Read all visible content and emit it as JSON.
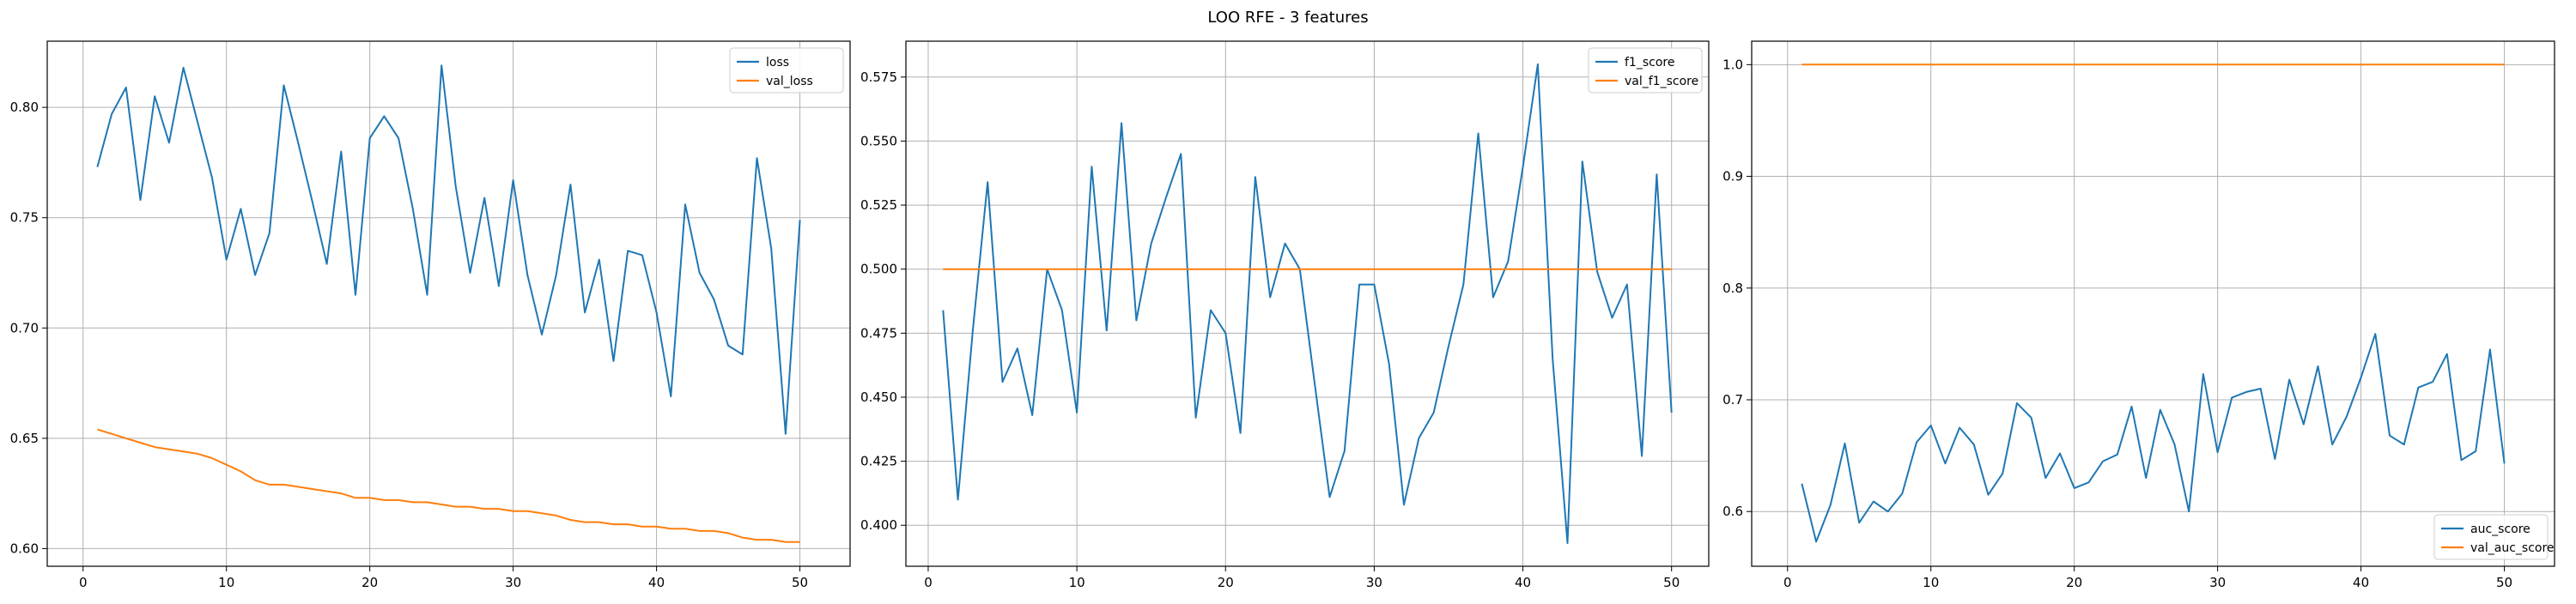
{
  "figure": {
    "suptitle": "LOO RFE - 3 features"
  },
  "colors": {
    "train": "#1f77b4",
    "val": "#ff7f0e",
    "grid": "#b0b0b0",
    "axes": "#000000"
  },
  "chart_data": [
    {
      "type": "line",
      "x": [
        1,
        2,
        3,
        4,
        5,
        6,
        7,
        8,
        9,
        10,
        11,
        12,
        13,
        14,
        15,
        16,
        17,
        18,
        19,
        20,
        21,
        22,
        23,
        24,
        25,
        26,
        27,
        28,
        29,
        30,
        31,
        32,
        33,
        34,
        35,
        36,
        37,
        38,
        39,
        40,
        41,
        42,
        43,
        44,
        45,
        46,
        47,
        48,
        49,
        50
      ],
      "series": [
        {
          "name": "loss",
          "values": [
            0.773,
            0.797,
            0.809,
            0.758,
            0.805,
            0.784,
            0.818,
            0.793,
            0.768,
            0.731,
            0.754,
            0.724,
            0.743,
            0.81,
            0.784,
            0.757,
            0.729,
            0.78,
            0.715,
            0.786,
            0.796,
            0.786,
            0.754,
            0.715,
            0.819,
            0.764,
            0.725,
            0.759,
            0.719,
            0.767,
            0.724,
            0.697,
            0.724,
            0.765,
            0.707,
            0.731,
            0.685,
            0.735,
            0.733,
            0.707,
            0.669,
            0.756,
            0.725,
            0.713,
            0.692,
            0.688,
            0.777,
            0.736,
            0.652,
            0.749
          ]
        },
        {
          "name": "val_loss",
          "values": [
            0.654,
            0.652,
            0.65,
            0.648,
            0.646,
            0.645,
            0.644,
            0.643,
            0.641,
            0.638,
            0.635,
            0.631,
            0.629,
            0.629,
            0.628,
            0.627,
            0.626,
            0.625,
            0.623,
            0.623,
            0.622,
            0.622,
            0.621,
            0.621,
            0.62,
            0.619,
            0.619,
            0.618,
            0.618,
            0.617,
            0.617,
            0.616,
            0.615,
            0.613,
            0.612,
            0.612,
            0.611,
            0.611,
            0.61,
            0.61,
            0.609,
            0.609,
            0.608,
            0.608,
            0.607,
            0.605,
            0.604,
            0.604,
            0.603,
            0.603
          ]
        }
      ],
      "xlim": [
        -2.5,
        53.5
      ],
      "ylim": [
        0.592,
        0.83
      ],
      "xticks": [
        0,
        10,
        20,
        30,
        40,
        50
      ],
      "yticks": [
        0.6,
        0.65,
        0.7,
        0.75,
        0.8
      ],
      "ytick_labels": [
        "0.60",
        "0.65",
        "0.70",
        "0.75",
        "0.80"
      ],
      "grid": true,
      "legend": "top-right"
    },
    {
      "type": "line",
      "x": [
        1,
        2,
        3,
        4,
        5,
        6,
        7,
        8,
        9,
        10,
        11,
        12,
        13,
        14,
        15,
        16,
        17,
        18,
        19,
        20,
        21,
        22,
        23,
        24,
        25,
        26,
        27,
        28,
        29,
        30,
        31,
        32,
        33,
        34,
        35,
        36,
        37,
        38,
        39,
        40,
        41,
        42,
        43,
        44,
        45,
        46,
        47,
        48,
        49,
        50
      ],
      "series": [
        {
          "name": "f1_score",
          "values": [
            0.484,
            0.41,
            0.476,
            0.534,
            0.456,
            0.469,
            0.443,
            0.5,
            0.484,
            0.444,
            0.54,
            0.476,
            0.557,
            0.48,
            0.51,
            0.528,
            0.545,
            0.442,
            0.484,
            0.475,
            0.436,
            0.536,
            0.489,
            0.51,
            0.5,
            0.455,
            0.411,
            0.429,
            0.494,
            0.494,
            0.463,
            0.408,
            0.434,
            0.444,
            0.47,
            0.494,
            0.553,
            0.489,
            0.503,
            0.54,
            0.58,
            0.465,
            0.393,
            0.542,
            0.499,
            0.481,
            0.494,
            0.427,
            0.537,
            0.444
          ]
        },
        {
          "name": "val_f1_score",
          "values": [
            0.5,
            0.5,
            0.5,
            0.5,
            0.5,
            0.5,
            0.5,
            0.5,
            0.5,
            0.5,
            0.5,
            0.5,
            0.5,
            0.5,
            0.5,
            0.5,
            0.5,
            0.5,
            0.5,
            0.5,
            0.5,
            0.5,
            0.5,
            0.5,
            0.5,
            0.5,
            0.5,
            0.5,
            0.5,
            0.5,
            0.5,
            0.5,
            0.5,
            0.5,
            0.5,
            0.5,
            0.5,
            0.5,
            0.5,
            0.5,
            0.5,
            0.5,
            0.5,
            0.5,
            0.5,
            0.5,
            0.5,
            0.5,
            0.5,
            0.5
          ]
        }
      ],
      "xlim": [
        -1.5,
        52.5
      ],
      "ylim": [
        0.384,
        0.589
      ],
      "xticks": [
        0,
        10,
        20,
        30,
        40,
        50
      ],
      "yticks": [
        0.4,
        0.425,
        0.45,
        0.475,
        0.5,
        0.525,
        0.55,
        0.575
      ],
      "ytick_labels": [
        "0.400",
        "0.425",
        "0.450",
        "0.475",
        "0.500",
        "0.525",
        "0.550",
        "0.575"
      ],
      "grid": true,
      "legend": "top-right"
    },
    {
      "type": "line",
      "x": [
        1,
        2,
        3,
        4,
        5,
        6,
        7,
        8,
        9,
        10,
        11,
        12,
        13,
        14,
        15,
        16,
        17,
        18,
        19,
        20,
        21,
        22,
        23,
        24,
        25,
        26,
        27,
        28,
        29,
        30,
        31,
        32,
        33,
        34,
        35,
        36,
        37,
        38,
        39,
        40,
        41,
        42,
        43,
        44,
        45,
        46,
        47,
        48,
        49,
        50
      ],
      "series": [
        {
          "name": "auc_score",
          "values": [
            0.625,
            0.573,
            0.606,
            0.661,
            0.59,
            0.609,
            0.6,
            0.616,
            0.662,
            0.677,
            0.643,
            0.675,
            0.66,
            0.615,
            0.634,
            0.697,
            0.684,
            0.63,
            0.652,
            0.621,
            0.626,
            0.645,
            0.651,
            0.694,
            0.63,
            0.691,
            0.66,
            0.6,
            0.723,
            0.653,
            0.702,
            0.707,
            0.71,
            0.647,
            0.718,
            0.678,
            0.73,
            0.66,
            0.685,
            0.72,
            0.759,
            0.668,
            0.66,
            0.711,
            0.716,
            0.741,
            0.646,
            0.654,
            0.745,
            0.643
          ]
        },
        {
          "name": "val_auc_score",
          "values": [
            1.0,
            1.0,
            1.0,
            1.0,
            1.0,
            1.0,
            1.0,
            1.0,
            1.0,
            1.0,
            1.0,
            1.0,
            1.0,
            1.0,
            1.0,
            1.0,
            1.0,
            1.0,
            1.0,
            1.0,
            1.0,
            1.0,
            1.0,
            1.0,
            1.0,
            1.0,
            1.0,
            1.0,
            1.0,
            1.0,
            1.0,
            1.0,
            1.0,
            1.0,
            1.0,
            1.0,
            1.0,
            1.0,
            1.0,
            1.0,
            1.0,
            1.0,
            1.0,
            1.0,
            1.0,
            1.0,
            1.0,
            1.0,
            1.0,
            1.0
          ]
        }
      ],
      "xlim": [
        -2.5,
        53.5
      ],
      "ylim": [
        0.551,
        1.021
      ],
      "xticks": [
        0,
        10,
        20,
        30,
        40,
        50
      ],
      "yticks": [
        0.6,
        0.7,
        0.8,
        0.9,
        1.0
      ],
      "ytick_labels": [
        "0.6",
        "0.7",
        "0.8",
        "0.9",
        "1.0"
      ],
      "grid": true,
      "legend": "bottom-right"
    }
  ]
}
